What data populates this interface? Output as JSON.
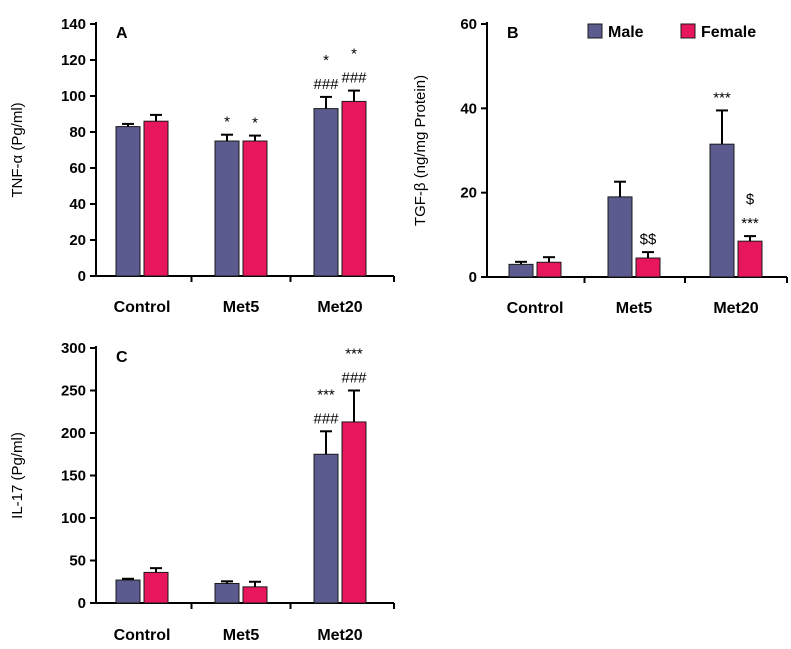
{
  "figure": {
    "colors": {
      "male": "#5b5b8f",
      "female": "#e8175d",
      "axis": "#000000",
      "outline": "#1a1a1a"
    },
    "legend": {
      "male": "Male",
      "female": "Female",
      "position": "top-right of panel B"
    }
  },
  "chart_data": [
    {
      "panel_label": "A",
      "type": "bar",
      "ylabel": "TNF-α (Pg/ml)",
      "xlabel": "",
      "categories": [
        "Control",
        "Met5",
        "Met20"
      ],
      "ylim": [
        0,
        140
      ],
      "yticks": [
        "0",
        "20",
        "40",
        "60",
        "80",
        "100",
        "120",
        "140"
      ],
      "series": [
        {
          "name": "Male",
          "values": [
            83,
            75,
            93
          ],
          "errors": [
            1.5,
            3.5,
            6.5
          ],
          "annotations": [
            [],
            [
              "*"
            ],
            [
              "###",
              "*"
            ]
          ]
        },
        {
          "name": "Female",
          "values": [
            86,
            75,
            97
          ],
          "errors": [
            3.5,
            3.0,
            6.0
          ],
          "annotations": [
            [],
            [
              "*"
            ],
            [
              "###",
              "*"
            ]
          ]
        }
      ]
    },
    {
      "panel_label": "B",
      "type": "bar",
      "ylabel": "TGF-β (ng/mg Protein)",
      "xlabel": "",
      "categories": [
        "Control",
        "Met5",
        "Met20"
      ],
      "ylim": [
        0,
        60
      ],
      "yticks": [
        "0",
        "20",
        "40",
        "60"
      ],
      "legend": true,
      "series": [
        {
          "name": "Male",
          "values": [
            3,
            19,
            31.5
          ],
          "errors": [
            0.6,
            3.6,
            8.0
          ],
          "annotations": [
            [],
            [],
            [
              "***"
            ]
          ]
        },
        {
          "name": "Female",
          "values": [
            3.5,
            4.5,
            8.5
          ],
          "errors": [
            1.2,
            1.4,
            1.2
          ],
          "annotations": [
            [],
            [
              "$$"
            ],
            [
              "***",
              "$"
            ]
          ]
        }
      ]
    },
    {
      "panel_label": "C",
      "type": "bar",
      "ylabel": "IL-17 (Pg/ml)",
      "xlabel": "",
      "categories": [
        "Control",
        "Met5",
        "Met20"
      ],
      "ylim": [
        0,
        300
      ],
      "yticks": [
        "0",
        "50",
        "100",
        "150",
        "200",
        "250",
        "300"
      ],
      "series": [
        {
          "name": "Male",
          "values": [
            27,
            23,
            175
          ],
          "errors": [
            1.5,
            2.5,
            27
          ],
          "annotations": [
            [],
            [],
            [
              "###",
              "***"
            ]
          ]
        },
        {
          "name": "Female",
          "values": [
            36,
            19,
            213
          ],
          "errors": [
            5,
            6,
            37
          ],
          "annotations": [
            [],
            [],
            [
              "###",
              "***"
            ]
          ]
        }
      ]
    }
  ]
}
